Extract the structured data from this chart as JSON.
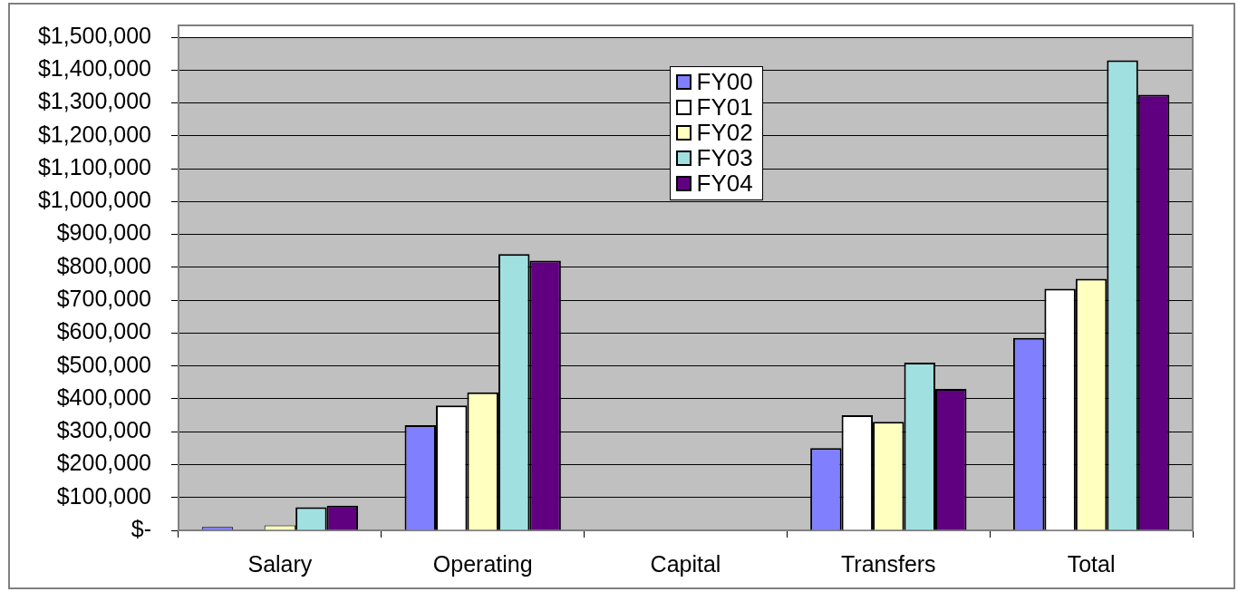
{
  "chart_data": {
    "type": "bar",
    "categories": [
      "Salary",
      "Operating",
      "Capital",
      "Transfers",
      "Total"
    ],
    "series": [
      {
        "name": "FY00",
        "color": "#8080ff",
        "values": [
          10000,
          320000,
          0,
          250000,
          585000
        ]
      },
      {
        "name": "FY01",
        "color": "#ffffff",
        "values": [
          0,
          380000,
          0,
          350000,
          735000
        ]
      },
      {
        "name": "FY02",
        "color": "#ffffc0",
        "values": [
          15000,
          420000,
          0,
          330000,
          765000
        ]
      },
      {
        "name": "FY03",
        "color": "#a0e0e0",
        "values": [
          70000,
          840000,
          0,
          510000,
          1430000
        ]
      },
      {
        "name": "FY04",
        "color": "#600080",
        "values": [
          75000,
          820000,
          0,
          430000,
          1325000
        ]
      }
    ],
    "ylim": [
      0,
      1500000
    ],
    "yticks": [
      {
        "value": 0,
        "label": "$-"
      },
      {
        "value": 100000,
        "label": "$100,000"
      },
      {
        "value": 200000,
        "label": "$200,000"
      },
      {
        "value": 300000,
        "label": "$300,000"
      },
      {
        "value": 400000,
        "label": "$400,000"
      },
      {
        "value": 500000,
        "label": "$500,000"
      },
      {
        "value": 600000,
        "label": "$600,000"
      },
      {
        "value": 700000,
        "label": "$700,000"
      },
      {
        "value": 800000,
        "label": "$800,000"
      },
      {
        "value": 900000,
        "label": "$900,000"
      },
      {
        "value": 1000000,
        "label": "$1,000,000"
      },
      {
        "value": 1100000,
        "label": "$1,100,000"
      },
      {
        "value": 1200000,
        "label": "$1,200,000"
      },
      {
        "value": 1300000,
        "label": "$1,300,000"
      },
      {
        "value": 1400000,
        "label": "$1,400,000"
      },
      {
        "value": 1500000,
        "label": "$1,500,000"
      }
    ],
    "grid": "y",
    "legend": "top"
  }
}
